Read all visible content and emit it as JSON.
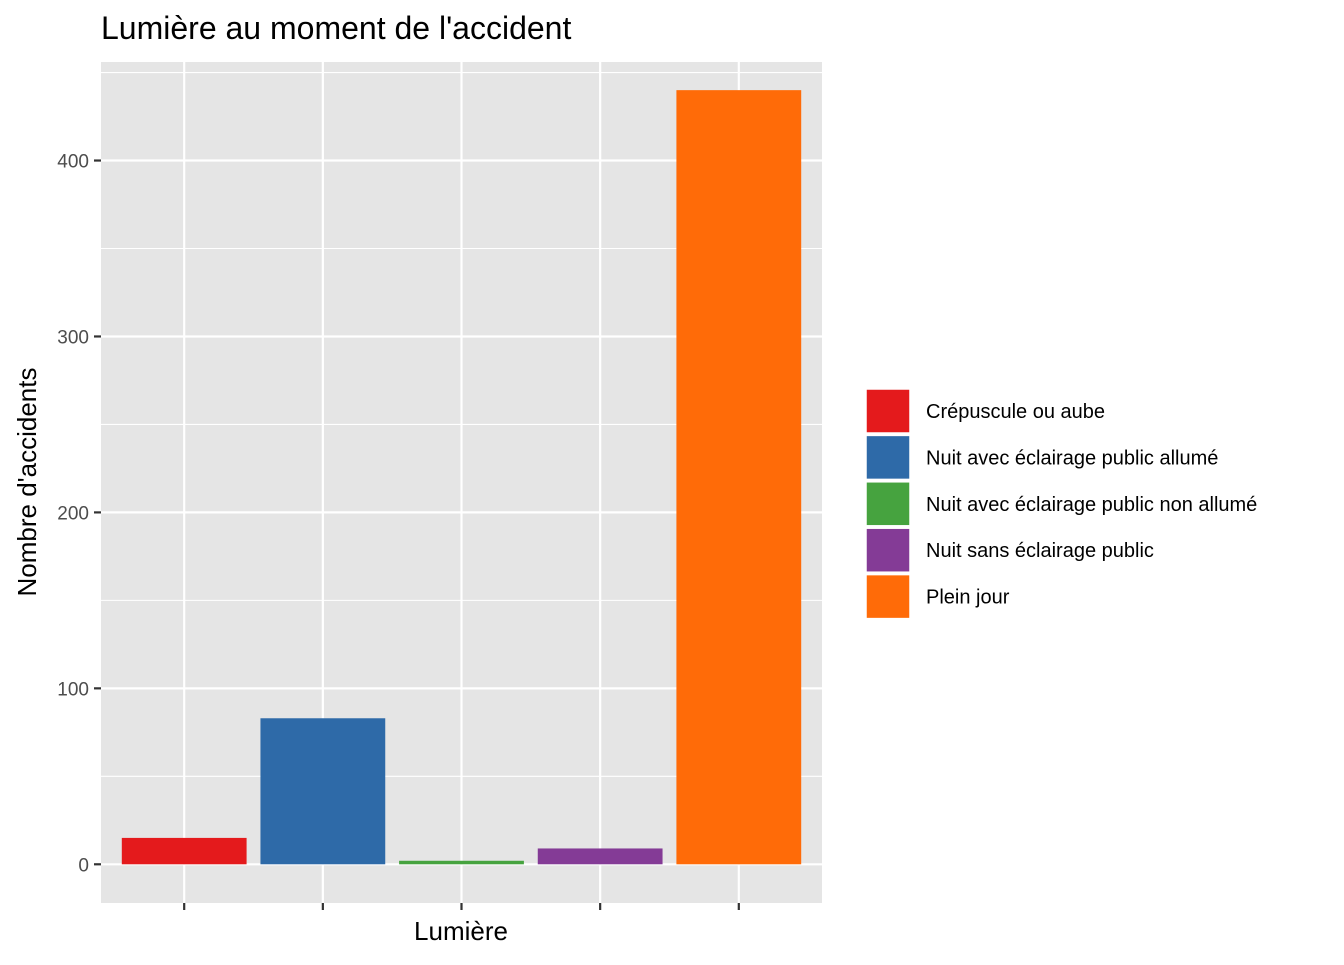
{
  "chart_data": {
    "type": "bar",
    "title": "Lumière au moment de l'accident",
    "xlabel": "Lumière",
    "ylabel": "Nombre d'accidents",
    "categories": [
      "Crépuscule ou aube",
      "Nuit avec éclairage public allumé",
      "Nuit avec éclairage public non allumé",
      "Nuit sans éclairage public",
      "Plein jour"
    ],
    "values": [
      15,
      83,
      2,
      9,
      440
    ],
    "colors": [
      "#E41A1C",
      "#2E6AA8",
      "#46A33F",
      "#843B96",
      "#FF6B08"
    ],
    "ylim": [
      -22,
      456
    ],
    "yticks": [
      0,
      100,
      200,
      300,
      400
    ],
    "ytick_labels": [
      "0",
      "100",
      "200",
      "300",
      "400"
    ],
    "x_tick_labels_visible": false,
    "grid": true,
    "legend": {
      "position": "right",
      "entries": [
        "Crépuscule ou aube",
        "Nuit avec éclairage public allumé",
        "Nuit avec éclairage public non allumé",
        "Nuit sans éclairage public",
        "Plein jour"
      ]
    },
    "background": "#E5E5E5"
  }
}
